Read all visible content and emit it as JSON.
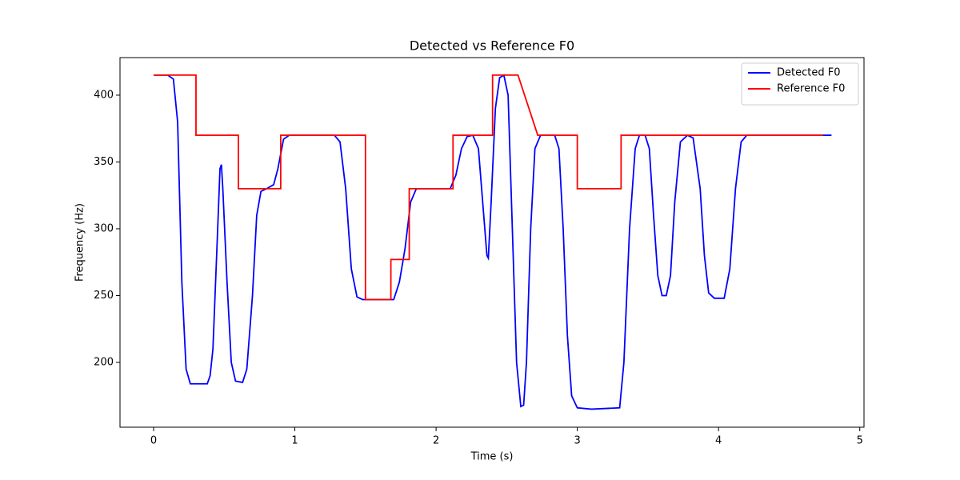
{
  "chart_data": {
    "type": "line",
    "title": "Detected vs Reference F0",
    "x_label": "Time (s)",
    "y_label": "Frequency (Hz)",
    "xlim": [
      -0.238,
      5.03
    ],
    "ylim": [
      151.5,
      428.1
    ],
    "xticks": [
      0,
      1,
      2,
      3,
      4,
      5
    ],
    "yticks": [
      200,
      250,
      300,
      350,
      400
    ],
    "grid": false,
    "legend": "upper right",
    "series": [
      {
        "name": "Detected F0",
        "color": "#0000ff",
        "x": [
          0,
          0.1,
          0.14,
          0.17,
          0.2,
          0.23,
          0.26,
          0.38,
          0.4,
          0.42,
          0.45,
          0.47,
          0.48,
          0.49,
          0.52,
          0.55,
          0.58,
          0.63,
          0.66,
          0.7,
          0.73,
          0.76,
          0.8,
          0.85,
          0.88,
          0.92,
          0.96,
          1.28,
          1.32,
          1.36,
          1.4,
          1.44,
          1.48,
          1.7,
          1.74,
          1.78,
          1.82,
          1.86,
          2.1,
          2.14,
          2.18,
          2.22,
          2.26,
          2.3,
          2.33,
          2.36,
          2.37,
          2.39,
          2.42,
          2.45,
          2.48,
          2.51,
          2.54,
          2.57,
          2.6,
          2.62,
          2.64,
          2.67,
          2.7,
          2.74,
          2.84,
          2.87,
          2.9,
          2.93,
          2.96,
          3.0,
          3.1,
          3.3,
          3.33,
          3.37,
          3.41,
          3.44,
          3.48,
          3.51,
          3.54,
          3.57,
          3.6,
          3.63,
          3.66,
          3.69,
          3.73,
          3.78,
          3.82,
          3.87,
          3.9,
          3.93,
          3.97,
          4.04,
          4.08,
          4.12,
          4.16,
          4.2,
          4.8
        ],
        "values": [
          415,
          415,
          412,
          380,
          260,
          195,
          184,
          184,
          190,
          210,
          290,
          345,
          348,
          330,
          260,
          200,
          186,
          185,
          195,
          250,
          310,
          328,
          330,
          333,
          345,
          367,
          370,
          370,
          365,
          330,
          270,
          249,
          247,
          247,
          260,
          285,
          320,
          330,
          330,
          340,
          360,
          369,
          370,
          360,
          320,
          280,
          278,
          320,
          390,
          413,
          415,
          400,
          300,
          200,
          167,
          168,
          200,
          300,
          360,
          370,
          370,
          360,
          300,
          220,
          175,
          166,
          165,
          166,
          200,
          300,
          360,
          370,
          370,
          360,
          310,
          265,
          250,
          250,
          265,
          320,
          365,
          370,
          368,
          330,
          280,
          252,
          248,
          248,
          270,
          330,
          365,
          370,
          370
        ]
      },
      {
        "name": "Reference F0",
        "color": "#ff0000",
        "x": [
          0,
          0.3,
          0.3,
          0.6,
          0.6,
          0.9,
          0.9,
          1.5,
          1.5,
          1.68,
          1.68,
          1.81,
          1.81,
          2.12,
          2.12,
          2.4,
          2.4,
          2.58,
          2.72,
          3.0,
          3.0,
          3.31,
          3.31,
          4.74
        ],
        "values": [
          415,
          415,
          370,
          370,
          330,
          330,
          370,
          370,
          247,
          247,
          277,
          277,
          330,
          330,
          370,
          370,
          415,
          415,
          370,
          370,
          330,
          330,
          370,
          370
        ]
      }
    ]
  }
}
